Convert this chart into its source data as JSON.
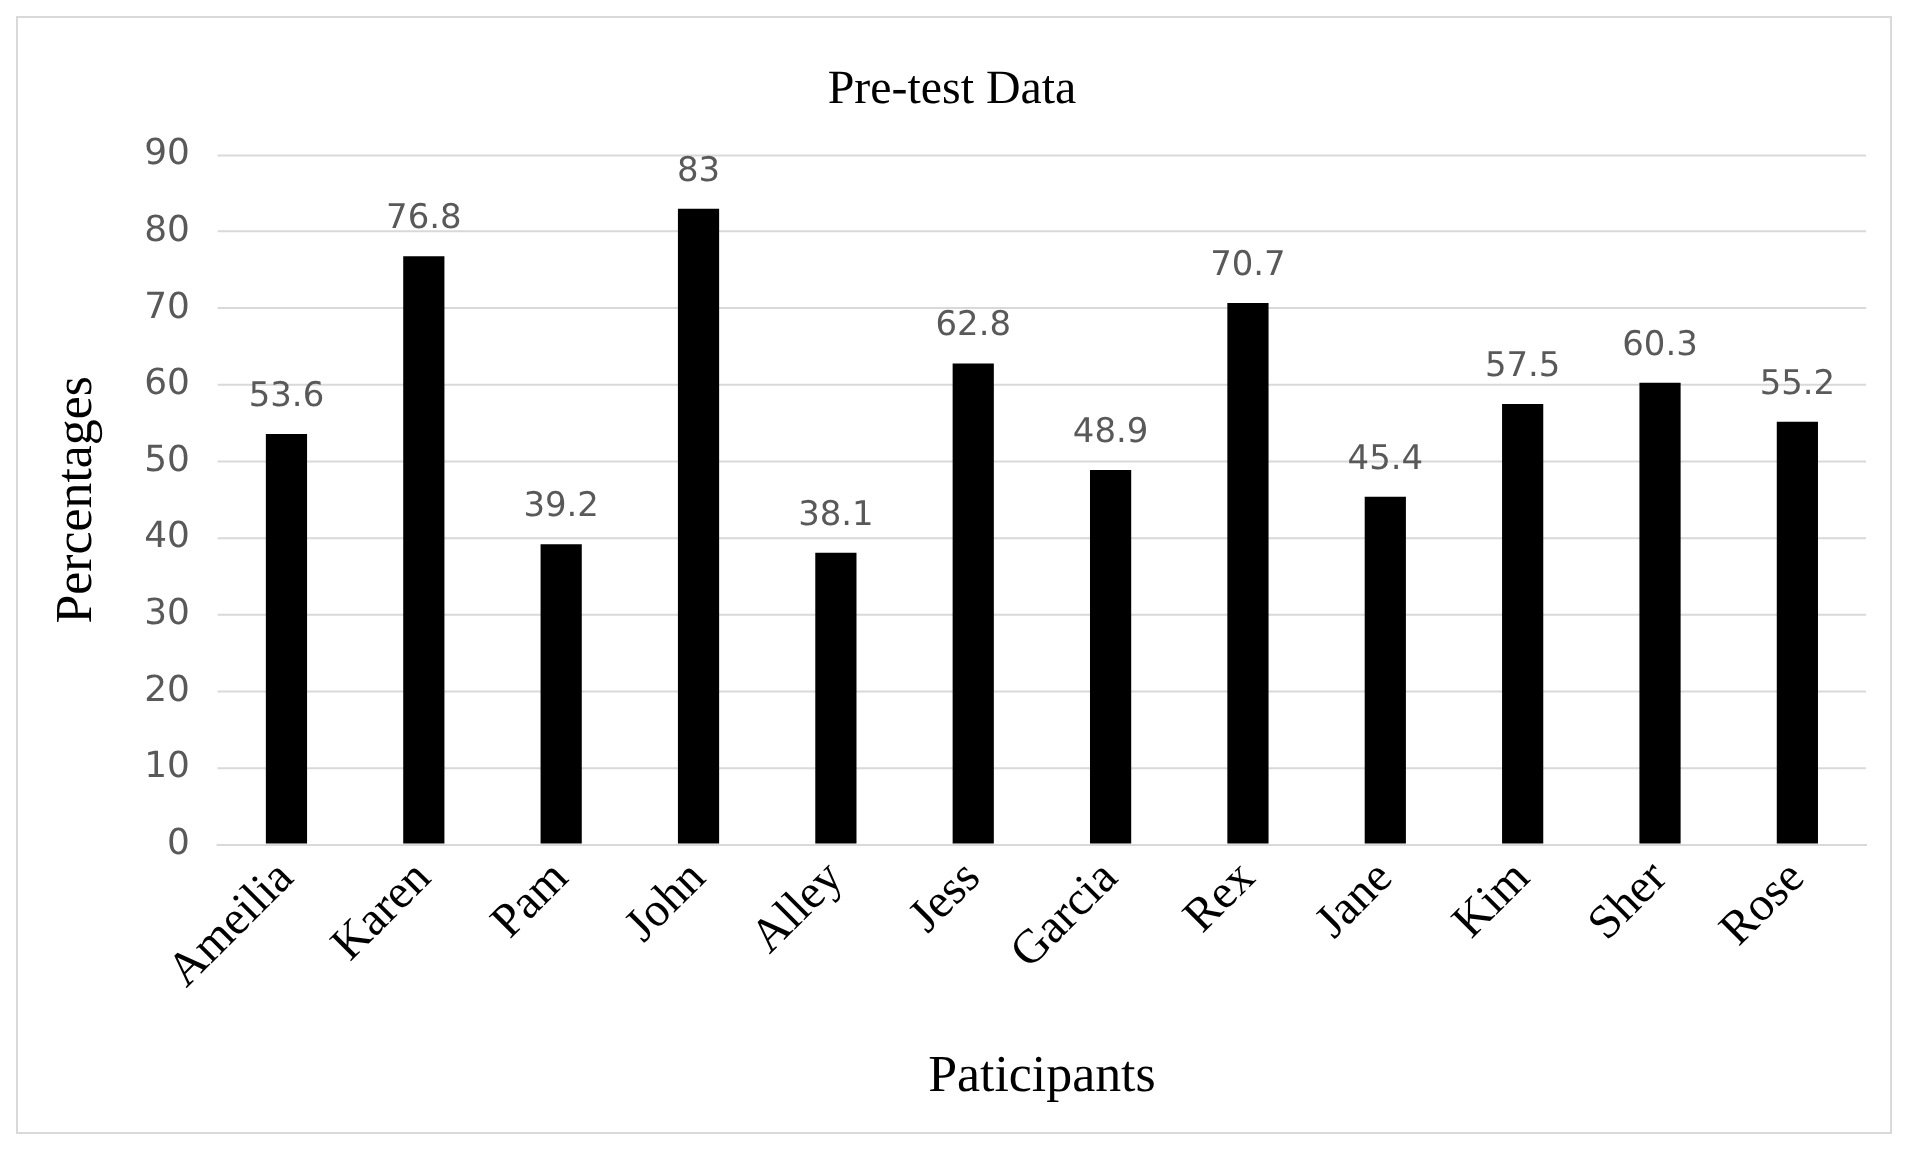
{
  "chart_data": {
    "type": "bar",
    "title": "Pre-test Data",
    "xlabel": "Paticipants",
    "ylabel": "Percentages",
    "categories": [
      "Ameilia",
      "Karen",
      "Pam",
      "John",
      "Alley",
      "Jess",
      "Garcia",
      "Rex",
      "Jane",
      "Kim",
      "Sher",
      "Rose"
    ],
    "values": [
      53.6,
      76.8,
      39.2,
      83,
      38.1,
      62.8,
      48.9,
      70.7,
      45.4,
      57.5,
      60.3,
      55.2
    ],
    "color": "#000000",
    "ylim": [
      0,
      90
    ],
    "yticks": [
      0,
      10,
      20,
      30,
      40,
      50,
      60,
      70,
      80,
      90
    ],
    "grid": "y",
    "data_labels": true,
    "legend": false
  }
}
